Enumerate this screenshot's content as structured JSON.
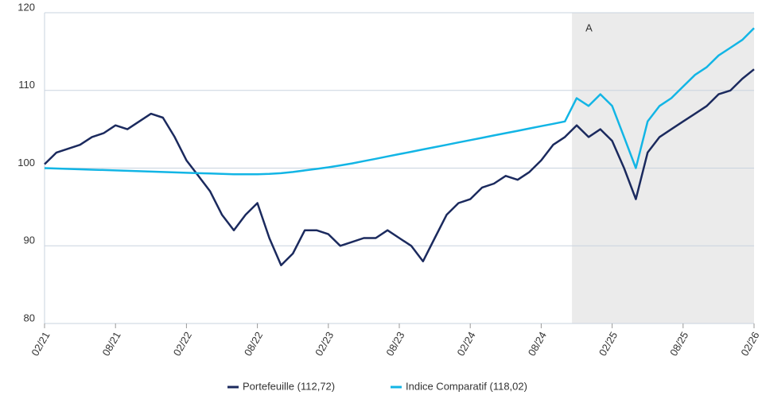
{
  "chart_data": {
    "type": "line",
    "x": [
      2021.083,
      2021.167,
      2021.25,
      2021.333,
      2021.417,
      2021.5,
      2021.583,
      2021.667,
      2021.75,
      2021.833,
      2021.917,
      2022,
      2022.083,
      2022.167,
      2022.25,
      2022.333,
      2022.417,
      2022.5,
      2022.583,
      2022.667,
      2022.75,
      2022.833,
      2022.917,
      2023,
      2023.083,
      2023.167,
      2023.25,
      2023.333,
      2023.417,
      2023.5,
      2023.583,
      2023.667,
      2023.75,
      2023.833,
      2023.917,
      2024,
      2024.083,
      2024.167,
      2024.25,
      2024.333,
      2024.417,
      2024.5,
      2024.583,
      2024.667,
      2024.75,
      2024.833,
      2024.917,
      2025,
      2025.083,
      2025.167,
      2025.25,
      2025.333,
      2025.417,
      2025.5,
      2025.583,
      2025.667,
      2025.75,
      2025.833,
      2025.917,
      2026,
      2026.083
    ],
    "series": [
      {
        "name": "Portefeuille (112,72)",
        "color": "#1b2a5e",
        "values": [
          100.5,
          102,
          102.5,
          103,
          104,
          104.5,
          105.5,
          105,
          106,
          107,
          106.5,
          104,
          101,
          99,
          97,
          94,
          92,
          94,
          95.5,
          91,
          87.5,
          89,
          92,
          92,
          91.5,
          90,
          90.5,
          91,
          91,
          92,
          91,
          90,
          88,
          91,
          94,
          95.5,
          96,
          97.5,
          98,
          99,
          98.5,
          99.5,
          101,
          103,
          104,
          105.5,
          104,
          105,
          103.5,
          100,
          96,
          102,
          104,
          105,
          106,
          107,
          108,
          109.5,
          110,
          111.5,
          112.72
        ]
      },
      {
        "name": "Indice Comparatif (118,02)",
        "color": "#12b5e5",
        "values": [
          100,
          99.95,
          99.9,
          99.85,
          99.8,
          99.75,
          99.7,
          99.65,
          99.6,
          99.55,
          99.5,
          99.45,
          99.4,
          99.35,
          99.3,
          99.25,
          99.2,
          99.2,
          99.2,
          99.25,
          99.35,
          99.5,
          99.7,
          99.9,
          100.1,
          100.35,
          100.6,
          100.9,
          101.2,
          101.5,
          101.8,
          102.1,
          102.4,
          102.7,
          103,
          103.3,
          103.6,
          103.9,
          104.2,
          104.5,
          104.8,
          105.1,
          105.4,
          105.7,
          106,
          109,
          108,
          109.5,
          108,
          104,
          100,
          106,
          108,
          109,
          110.5,
          112,
          113,
          114.5,
          115.5,
          116.5,
          118.02
        ]
      }
    ],
    "xlim": [
      2021.083,
      2026.083
    ],
    "xticks": [
      {
        "value": 2021.083,
        "label": "02/21"
      },
      {
        "value": 2021.583,
        "label": "08/21"
      },
      {
        "value": 2022.083,
        "label": "02/22"
      },
      {
        "value": 2022.583,
        "label": "08/22"
      },
      {
        "value": 2023.083,
        "label": "02/23"
      },
      {
        "value": 2023.583,
        "label": "08/23"
      },
      {
        "value": 2024.083,
        "label": "02/24"
      },
      {
        "value": 2024.583,
        "label": "08/24"
      },
      {
        "value": 2025.083,
        "label": "02/25"
      },
      {
        "value": 2025.583,
        "label": "08/25"
      },
      {
        "value": 2026.083,
        "label": "02/26"
      }
    ],
    "ylim": [
      80,
      120
    ],
    "yticks": [
      80,
      90,
      100,
      110,
      120
    ],
    "grid": true,
    "shaded_region": {
      "label": "A",
      "x_start": 2024.8
    },
    "legend": "bottom"
  }
}
